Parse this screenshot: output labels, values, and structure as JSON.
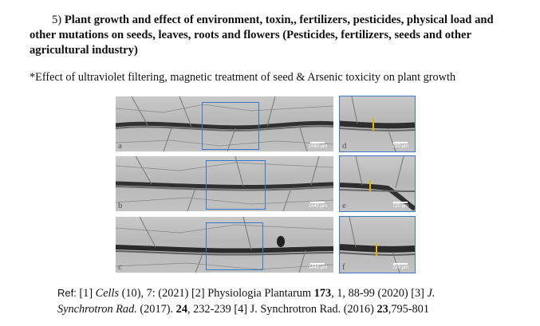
{
  "heading": {
    "number": "5)",
    "text": "Plant growth and effect of environment, toxin,, fertilizers, pesticides, physical load and other mutations on seeds, leaves, roots and flowers (Pesticides, fertilizers, seeds and other agricultural industry)"
  },
  "subheading": "*Effect of ultraviolet filtering, magnetic treatment of seed & Arsenic toxicity on plant growth",
  "panels": [
    {
      "letter": "a",
      "scale": "1440 µm"
    },
    {
      "letter": "b",
      "scale": "1440 µm"
    },
    {
      "letter": "c",
      "scale": "1440 µm"
    },
    {
      "letter": "d",
      "scale": "720 µm"
    },
    {
      "letter": "e",
      "scale": "720 µm"
    },
    {
      "letter": "f",
      "scale": "720 µm"
    }
  ],
  "colors": {
    "roi_box": "#3c78c8",
    "measure_line": "#e6b400"
  },
  "references": {
    "ref_label": "Ref:",
    "r1_tag": "[1]",
    "r1_journal": "Cells",
    "r1_rest": "(10), 7: (2021)",
    "r2_tag": "[2]",
    "r2_journal": "Physiologia Plantarum",
    "r2_vol": "173",
    "r2_rest": ", 1, 88-99 (2020)",
    "r3_tag": "[3]",
    "r3_journal_a": "J.",
    "r3_journal_b": "Synchrotron Rad.",
    "r3_year": "(2017).",
    "r3_vol": "24",
    "r3_rest": ", 232-239",
    "r4_tag": "[4]",
    "r4_journal": "J. Synchrotron Rad. (2016)",
    "r4_vol": "23",
    "r4_rest": ",795-801"
  }
}
